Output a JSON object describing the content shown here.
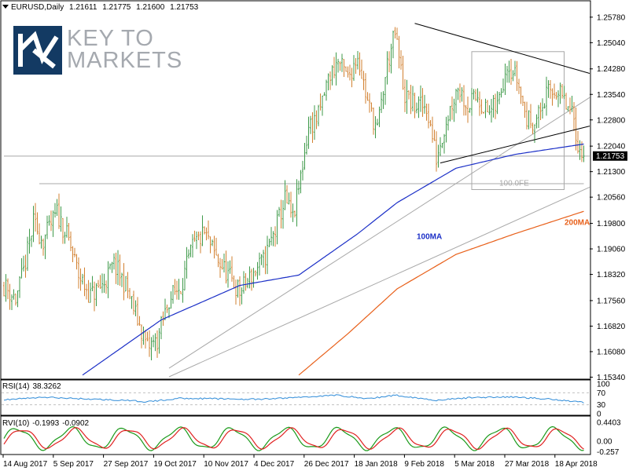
{
  "header": {
    "symbol": "EURUSD,Daily",
    "open": "1.21611",
    "high": "1.21775",
    "low": "1.21600",
    "close": "1.21753"
  },
  "logo": {
    "line1": "KEY TO",
    "line2": "MARKETS"
  },
  "colors": {
    "bull": "#3f9a4a",
    "bear": "#d28030",
    "ma100": "#1b2fc7",
    "ma200": "#e8601a",
    "trend": "#000000",
    "channel": "#a8a8a8",
    "rsi": "#2e8bd8",
    "rvi_main": "#1a9a1a",
    "rvi_signal": "#e02020",
    "price_tag_bg": "#000000"
  },
  "chart_data": {
    "type": "candlestick",
    "instrument": "EURUSD",
    "timeframe": "Daily",
    "ylim": [
      1.1535,
      1.2605
    ],
    "price_ticks": [
      "1.25780",
      "1.25040",
      "1.24280",
      "1.23540",
      "1.22800",
      "1.22040",
      "1.21300",
      "1.20560",
      "1.19800",
      "1.19060",
      "1.18320",
      "1.17560",
      "1.16820",
      "1.16080",
      "1.15340"
    ],
    "x_labels": [
      "14 Aug 2017",
      "5 Sep 2017",
      "27 Sep 2017",
      "19 Oct 2017",
      "10 Nov 2017",
      "4 Dec 2017",
      "26 Dec 2017",
      "18 Jan 2018",
      "9 Feb 2018",
      "5 Mar 2018",
      "27 Mar 2018",
      "18 Apr 2018"
    ],
    "current_price": "1.21753",
    "close_anchors": [
      [
        0,
        1.18
      ],
      [
        6,
        1.176
      ],
      [
        10,
        1.184
      ],
      [
        15,
        1.198
      ],
      [
        20,
        1.193
      ],
      [
        27,
        1.201
      ],
      [
        33,
        1.193
      ],
      [
        38,
        1.183
      ],
      [
        44,
        1.177
      ],
      [
        50,
        1.18
      ],
      [
        56,
        1.186
      ],
      [
        62,
        1.18
      ],
      [
        68,
        1.17
      ],
      [
        73,
        1.162
      ],
      [
        78,
        1.164
      ],
      [
        84,
        1.176
      ],
      [
        90,
        1.18
      ],
      [
        96,
        1.191
      ],
      [
        102,
        1.195
      ],
      [
        108,
        1.188
      ],
      [
        114,
        1.183
      ],
      [
        120,
        1.178
      ],
      [
        126,
        1.183
      ],
      [
        132,
        1.187
      ],
      [
        138,
        1.196
      ],
      [
        143,
        1.205
      ],
      [
        147,
        1.199
      ],
      [
        150,
        1.208
      ],
      [
        155,
        1.226
      ],
      [
        160,
        1.229
      ],
      [
        165,
        1.24
      ],
      [
        170,
        1.245
      ],
      [
        175,
        1.24
      ],
      [
        180,
        1.247
      ],
      [
        185,
        1.233
      ],
      [
        190,
        1.225
      ],
      [
        195,
        1.244
      ],
      [
        199,
        1.253
      ],
      [
        204,
        1.235
      ],
      [
        209,
        1.232
      ],
      [
        215,
        1.232
      ],
      [
        220,
        1.217
      ],
      [
        225,
        1.228
      ],
      [
        231,
        1.238
      ],
      [
        236,
        1.232
      ],
      [
        241,
        1.235
      ],
      [
        246,
        1.23
      ],
      [
        251,
        1.232
      ],
      [
        256,
        1.245
      ],
      [
        261,
        1.24
      ],
      [
        266,
        1.228
      ],
      [
        271,
        1.228
      ],
      [
        276,
        1.235
      ],
      [
        281,
        1.237
      ],
      [
        286,
        1.232
      ],
      [
        290,
        1.228
      ],
      [
        293,
        1.218
      ],
      [
        295,
        1.2175
      ]
    ],
    "ma100_anchors": [
      [
        40,
        1.154
      ],
      [
        80,
        1.17
      ],
      [
        120,
        1.18
      ],
      [
        150,
        1.183
      ],
      [
        180,
        1.195
      ],
      [
        200,
        1.204
      ],
      [
        230,
        1.214
      ],
      [
        260,
        1.218
      ],
      [
        295,
        1.221
      ]
    ],
    "ma200_anchors": [
      [
        150,
        1.154
      ],
      [
        175,
        1.166
      ],
      [
        200,
        1.179
      ],
      [
        230,
        1.189
      ],
      [
        260,
        1.195
      ],
      [
        295,
        1.2015
      ]
    ],
    "annotations": [
      {
        "text": "100MA",
        "color": "#1b2fc7"
      },
      {
        "text": "200MA",
        "color": "#e8601a"
      },
      {
        "text": "100.0FE",
        "color": "#a8a8a8"
      }
    ],
    "rsi": {
      "label": "RSI(14)",
      "value": "38.3262",
      "levels": [
        "100",
        "70",
        "30",
        "0"
      ],
      "anchors": [
        [
          0,
          47
        ],
        [
          20,
          55
        ],
        [
          40,
          50
        ],
        [
          60,
          45
        ],
        [
          73,
          40
        ],
        [
          90,
          52
        ],
        [
          110,
          50
        ],
        [
          130,
          48
        ],
        [
          150,
          55
        ],
        [
          170,
          62
        ],
        [
          185,
          50
        ],
        [
          199,
          62
        ],
        [
          220,
          45
        ],
        [
          240,
          55
        ],
        [
          260,
          56
        ],
        [
          280,
          48
        ],
        [
          295,
          38
        ]
      ]
    },
    "rvi": {
      "label": "RVI(10)",
      "main": "-0.1993",
      "signal": "-0.0902",
      "ticks": [
        "0.4403",
        "0.00",
        "-0.257"
      ]
    }
  }
}
